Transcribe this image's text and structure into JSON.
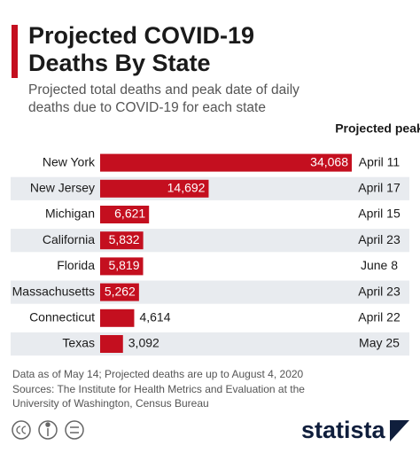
{
  "chart_data": {
    "type": "bar",
    "orientation": "horizontal",
    "title": "Projected COVID-19 Deaths By State",
    "subtitle": "Projected total deaths and peak date of daily deaths due to COVID-19 for each state",
    "peak_header": "Projected peak",
    "categories": [
      "New York",
      "New Jersey",
      "Michigan",
      "California",
      "Florida",
      "Massachusetts",
      "Connecticut",
      "Texas"
    ],
    "values": [
      34068,
      14692,
      6621,
      5832,
      5819,
      5262,
      4614,
      3092
    ],
    "value_labels": [
      "34,068",
      "14,692",
      "6,621",
      "5,832",
      "5,819",
      "5,262",
      "4,614",
      "3,092"
    ],
    "peaks": [
      "April 11",
      "April 17",
      "April 15",
      "April 23",
      "June 8",
      "April 23",
      "April 22",
      "May 25"
    ],
    "color": "#c40f1f",
    "note": "Data as of May 14; Projected deaths are up to August 4, 2020",
    "source": "Sources: The Institute for Health Metrics and Evaluation at the University of Washington, Census Bureau",
    "brand": "statista"
  }
}
